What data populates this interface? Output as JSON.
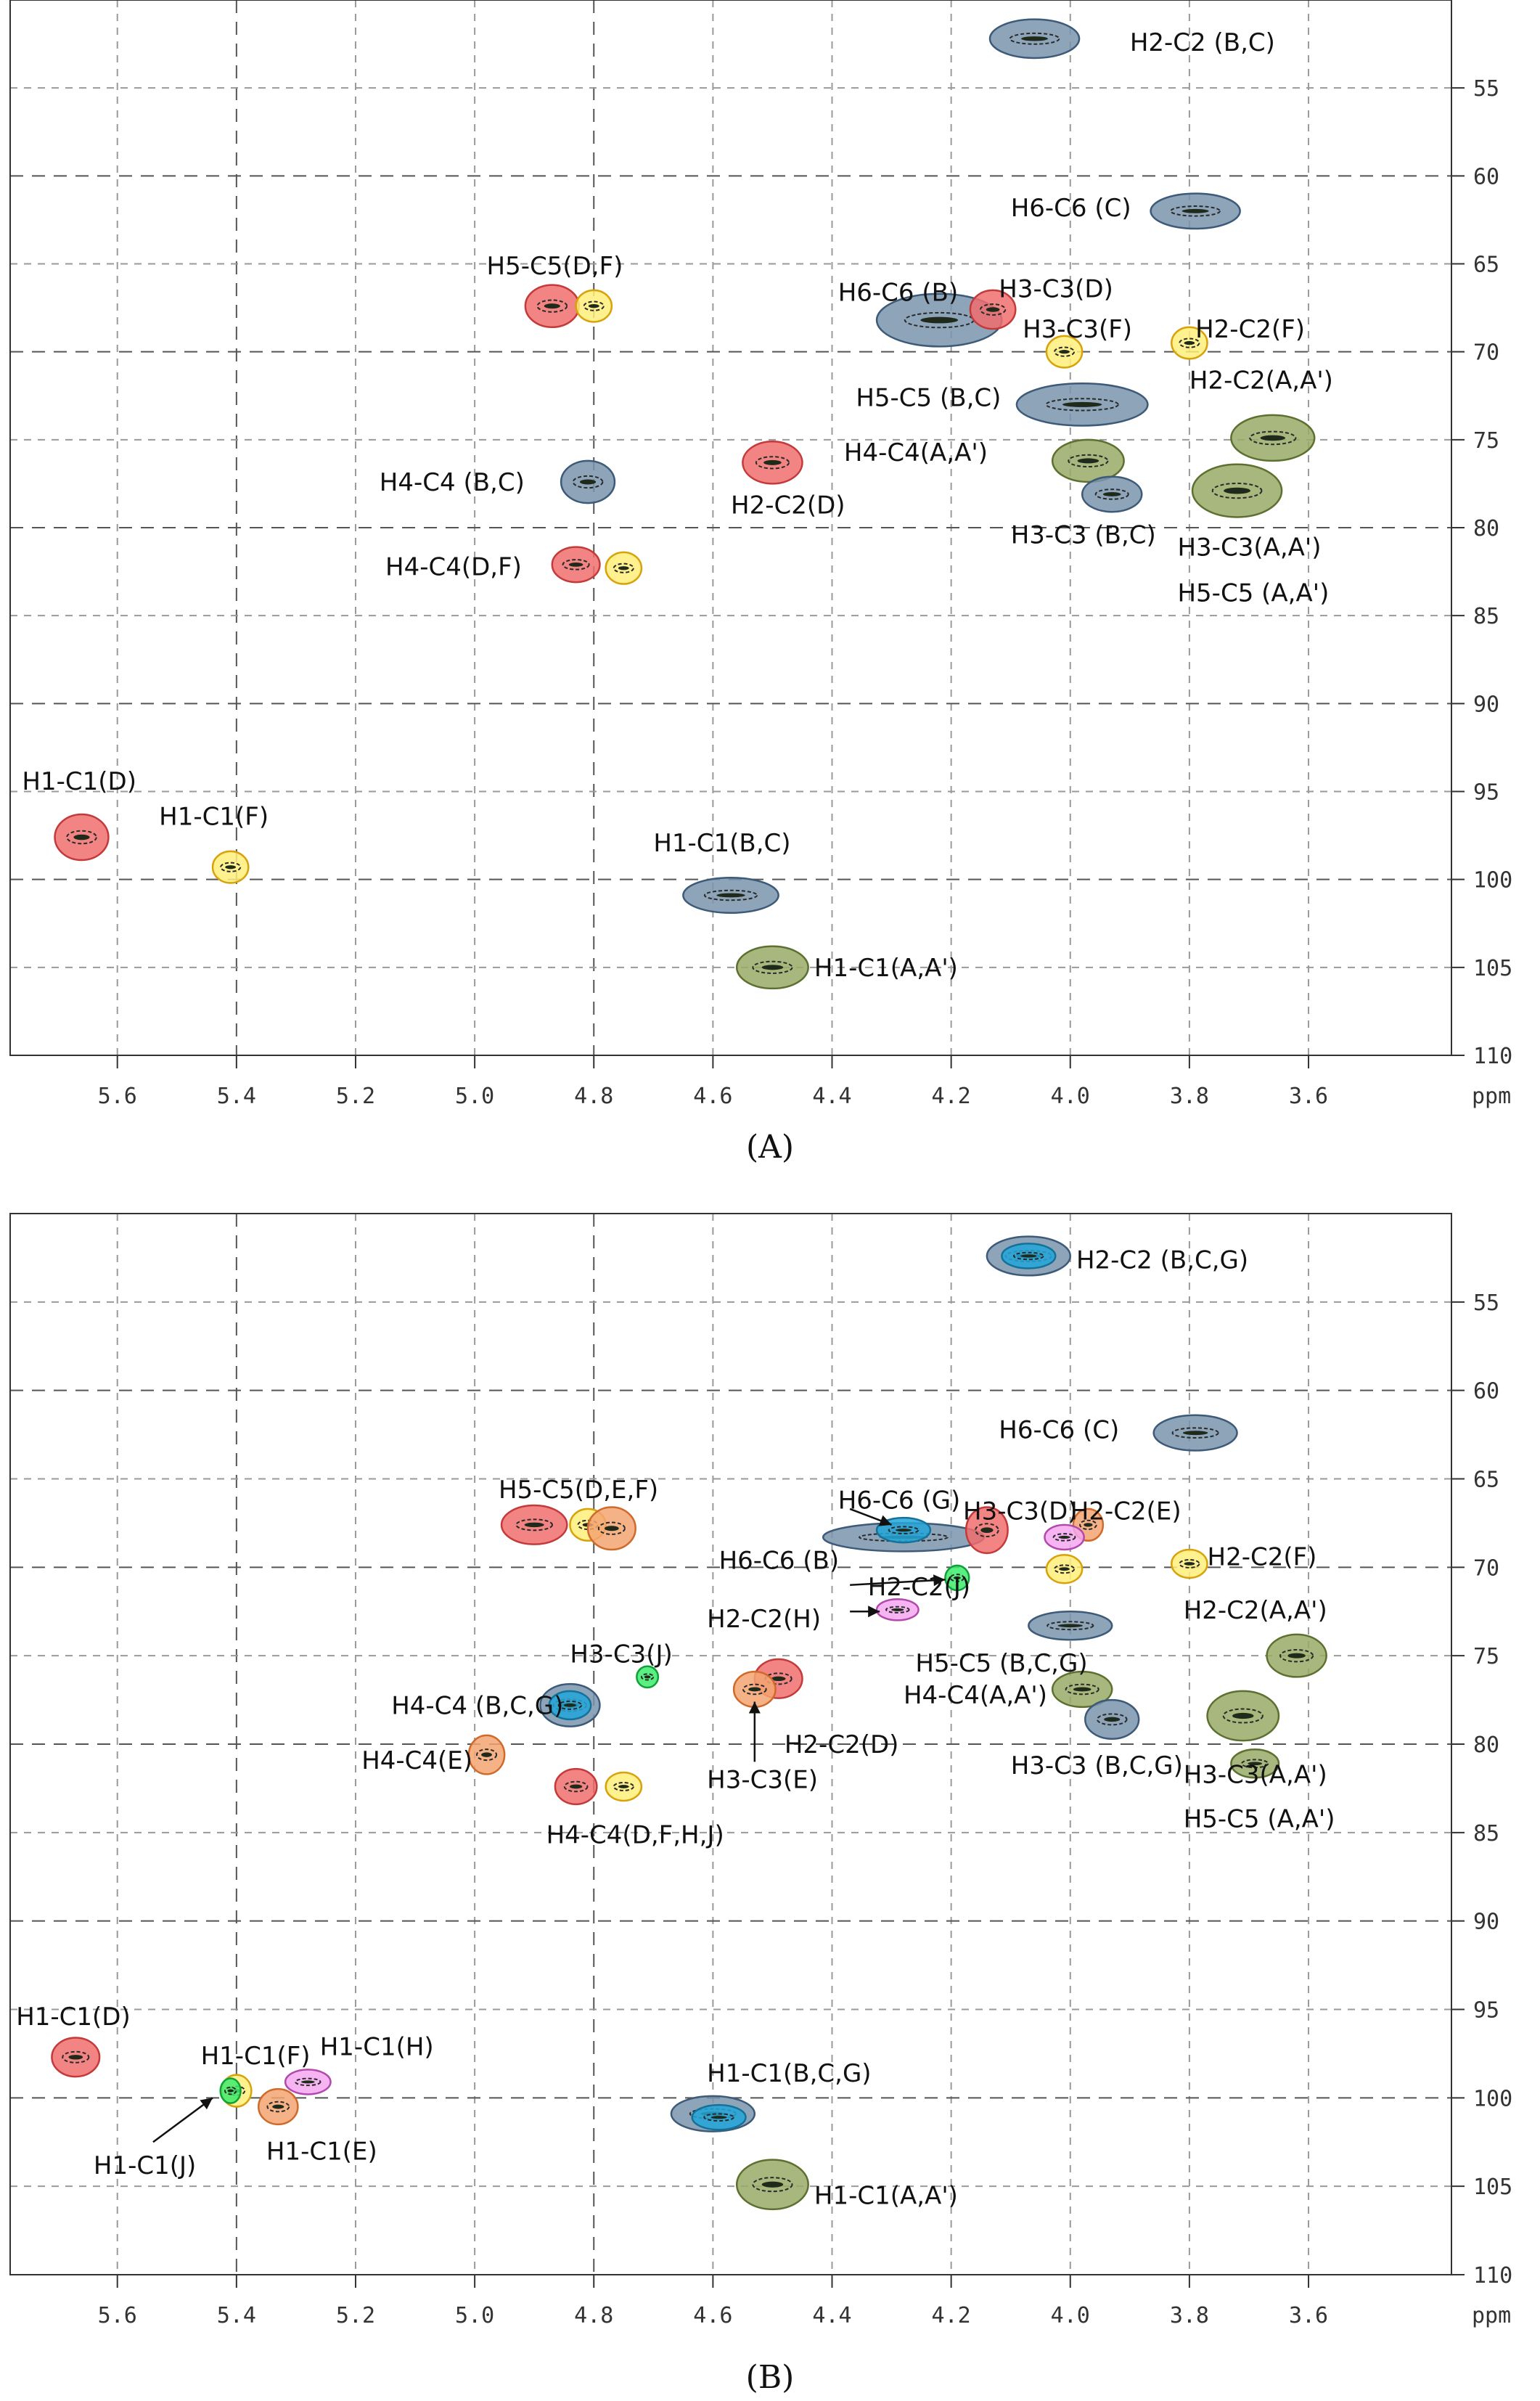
{
  "chart_data": [
    {
      "type": "scatter",
      "panel_label": "A",
      "xlabel": "ppm",
      "xlim": [
        5.78,
        3.36
      ],
      "ylim": [
        50,
        110
      ],
      "x_ticks": [
        "5.6",
        "5.4",
        "5.2",
        "5.0",
        "4.8",
        "4.6",
        "4.4",
        "4.2",
        "4.0",
        "3.8",
        "3.6"
      ],
      "y_ticks": [
        "55",
        "60",
        "65",
        "70",
        "75",
        "80",
        "85",
        "90",
        "95",
        "100",
        "105",
        "110"
      ],
      "peaks": [
        {
          "label": "H2-C2 (B,C)",
          "x": 4.06,
          "y": 52.2,
          "group": "slate",
          "rx": 0.075,
          "ry": 1.1
        },
        {
          "label": "H6-C6 (C)",
          "x": 3.79,
          "y": 62.0,
          "group": "slate",
          "rx": 0.075,
          "ry": 1.0
        },
        {
          "label": "H5-C5(D,F)",
          "x": 4.87,
          "y": 67.4,
          "group": "red",
          "rx": 0.045,
          "ry": 1.2
        },
        {
          "label": "H5-C5(D,F)",
          "x": 4.8,
          "y": 67.4,
          "group": "yellow",
          "rx": 0.03,
          "ry": 0.9
        },
        {
          "label": "H6-C6 (B)",
          "x": 4.22,
          "y": 68.2,
          "group": "slate",
          "rx": 0.105,
          "ry": 1.5
        },
        {
          "label": "H3-C3(D)",
          "x": 4.13,
          "y": 67.6,
          "group": "red",
          "rx": 0.038,
          "ry": 1.1
        },
        {
          "label": "H3-C3(F)",
          "x": 4.01,
          "y": 70.0,
          "group": "yellow",
          "rx": 0.03,
          "ry": 0.9
        },
        {
          "label": "H2-C2(F)",
          "x": 3.8,
          "y": 69.5,
          "group": "yellow",
          "rx": 0.03,
          "ry": 0.9
        },
        {
          "label": "H5-C5 (B,C)",
          "x": 3.98,
          "y": 73.0,
          "group": "slate",
          "rx": 0.11,
          "ry": 1.2
        },
        {
          "label": "H2-C2(A,A')",
          "x": 3.66,
          "y": 74.9,
          "group": "olive",
          "rx": 0.07,
          "ry": 1.3
        },
        {
          "label": "H4-C4(A,A')",
          "x": 3.97,
          "y": 76.2,
          "group": "olive",
          "rx": 0.06,
          "ry": 1.2
        },
        {
          "label": "H4-C4 (B,C)",
          "x": 4.81,
          "y": 77.4,
          "group": "slate",
          "rx": 0.045,
          "ry": 1.2
        },
        {
          "label": "H2-C2(D)",
          "x": 4.5,
          "y": 76.3,
          "group": "red",
          "rx": 0.05,
          "ry": 1.2
        },
        {
          "label": "H3-C3 (B,C)",
          "x": 3.93,
          "y": 78.1,
          "group": "slate",
          "rx": 0.05,
          "ry": 1.0
        },
        {
          "label": "H3-C3(A,A')",
          "x": 3.72,
          "y": 77.9,
          "group": "olive",
          "rx": 0.075,
          "ry": 1.5
        },
        {
          "label": "H4-C4(D,F)",
          "x": 4.83,
          "y": 82.1,
          "group": "red",
          "rx": 0.04,
          "ry": 1.0
        },
        {
          "label": "H4-C4(D,F)",
          "x": 4.75,
          "y": 82.3,
          "group": "yellow",
          "rx": 0.03,
          "ry": 0.9
        },
        {
          "label": "H1-C1(D)",
          "x": 5.66,
          "y": 97.6,
          "group": "red",
          "rx": 0.045,
          "ry": 1.3
        },
        {
          "label": "H1-C1(F)",
          "x": 5.41,
          "y": 99.3,
          "group": "yellow",
          "rx": 0.03,
          "ry": 0.9
        },
        {
          "label": "H1-C1(B,C)",
          "x": 4.57,
          "y": 100.9,
          "group": "slate",
          "rx": 0.08,
          "ry": 1.0
        },
        {
          "label": "H1-C1(A,A')",
          "x": 4.5,
          "y": 105.0,
          "group": "olive",
          "rx": 0.06,
          "ry": 1.2
        }
      ],
      "labels": [
        {
          "text": "H2-C2 (B,C)",
          "x": 3.9,
          "y": 52.4
        },
        {
          "text": "H6-C6 (C)",
          "x": 4.1,
          "y": 61.8
        },
        {
          "text": "H5-C5(D,F)",
          "x": 4.98,
          "y": 65.1
        },
        {
          "text": "H6-C6 (B)",
          "x": 4.39,
          "y": 66.6
        },
        {
          "text": "H3-C3(D)",
          "x": 4.12,
          "y": 66.4
        },
        {
          "text": "H3-C3(F)",
          "x": 4.08,
          "y": 68.7
        },
        {
          "text": "H2-C2(F)",
          "x": 3.79,
          "y": 68.7
        },
        {
          "text": "H5-C5 (B,C)",
          "x": 4.36,
          "y": 72.6
        },
        {
          "text": "H2-C2(A,A')",
          "x": 3.8,
          "y": 71.6
        },
        {
          "text": "H4-C4(A,A')",
          "x": 4.38,
          "y": 75.7
        },
        {
          "text": "H4-C4 (B,C)",
          "x": 5.16,
          "y": 77.4
        },
        {
          "text": "H2-C2(D)",
          "x": 4.57,
          "y": 78.7
        },
        {
          "text": "H3-C3 (B,C)",
          "x": 4.1,
          "y": 80.4
        },
        {
          "text": "H3-C3(A,A')",
          "x": 3.82,
          "y": 81.1
        },
        {
          "text": "H5-C5 (A,A')",
          "x": 3.82,
          "y": 83.7
        },
        {
          "text": "H4-C4(D,F)",
          "x": 5.15,
          "y": 82.2
        },
        {
          "text": "H1-C1(D)",
          "x": 5.76,
          "y": 94.4
        },
        {
          "text": "H1-C1(F)",
          "x": 5.53,
          "y": 96.4
        },
        {
          "text": "H1-C1(B,C)",
          "x": 4.7,
          "y": 97.9
        },
        {
          "text": "H1-C1(A,A')",
          "x": 4.43,
          "y": 105.0
        }
      ],
      "arrows": []
    },
    {
      "type": "scatter",
      "panel_label": "B",
      "xlabel": "ppm",
      "xlim": [
        5.78,
        3.36
      ],
      "ylim": [
        50,
        110
      ],
      "x_ticks": [
        "5.6",
        "5.4",
        "5.2",
        "5.0",
        "4.8",
        "4.6",
        "4.4",
        "4.2",
        "4.0",
        "3.8",
        "3.6"
      ],
      "y_ticks": [
        "55",
        "60",
        "65",
        "70",
        "75",
        "80",
        "85",
        "90",
        "95",
        "100",
        "105",
        "110"
      ],
      "peaks": [
        {
          "label": "H2-C2 (B,C,G)",
          "x": 4.07,
          "y": 52.4,
          "group": "slate",
          "rx": 0.07,
          "ry": 1.1
        },
        {
          "label": "H2-C2 (B,C,G)",
          "x": 4.07,
          "y": 52.4,
          "group": "blue",
          "rx": 0.045,
          "ry": 0.7
        },
        {
          "label": "H6-C6 (C)",
          "x": 3.79,
          "y": 62.4,
          "group": "slate",
          "rx": 0.07,
          "ry": 1.0
        },
        {
          "label": "H5-C5(D,E,F)",
          "x": 4.9,
          "y": 67.6,
          "group": "red",
          "rx": 0.055,
          "ry": 1.1
        },
        {
          "label": "H5-C5(D,E,F)",
          "x": 4.81,
          "y": 67.6,
          "group": "yellow",
          "rx": 0.03,
          "ry": 0.9
        },
        {
          "label": "H5-C5(D,E,F)",
          "x": 4.77,
          "y": 67.8,
          "group": "orange",
          "rx": 0.04,
          "ry": 1.2
        },
        {
          "label": "H6-C6 (B)",
          "x": 4.28,
          "y": 68.3,
          "group": "slate",
          "rx": 0.135,
          "ry": 0.8
        },
        {
          "label": "H6-C6 (G)",
          "x": 4.28,
          "y": 67.9,
          "group": "blue",
          "rx": 0.045,
          "ry": 0.7
        },
        {
          "label": "H3-C3(D)",
          "x": 4.14,
          "y": 67.9,
          "group": "red",
          "rx": 0.035,
          "ry": 1.3
        },
        {
          "label": "H2-C2(E)",
          "x": 3.97,
          "y": 67.6,
          "group": "orange",
          "rx": 0.025,
          "ry": 0.9
        },
        {
          "label": "H2-C2(E)",
          "x": 4.01,
          "y": 68.3,
          "group": "pink",
          "rx": 0.033,
          "ry": 0.7
        },
        {
          "label": "H3-C3(D)",
          "x": 4.01,
          "y": 70.1,
          "group": "yellow",
          "rx": 0.03,
          "ry": 0.8
        },
        {
          "label": "H2-C2(F)",
          "x": 3.8,
          "y": 69.8,
          "group": "yellow",
          "rx": 0.03,
          "ry": 0.8
        },
        {
          "label": "H2-C2(J)",
          "x": 4.19,
          "y": 70.6,
          "group": "green",
          "rx": 0.02,
          "ry": 0.7
        },
        {
          "label": "H2-C2(H)",
          "x": 4.29,
          "y": 72.4,
          "group": "pink",
          "rx": 0.035,
          "ry": 0.6
        },
        {
          "label": "H5-C5 (B,C,G)",
          "x": 4.0,
          "y": 73.3,
          "group": "slate",
          "rx": 0.07,
          "ry": 0.8
        },
        {
          "label": "H2-C2(A,A')",
          "x": 3.62,
          "y": 75.0,
          "group": "olive",
          "rx": 0.05,
          "ry": 1.2
        },
        {
          "label": "H3-C3(J)",
          "x": 4.71,
          "y": 76.2,
          "group": "green",
          "rx": 0.018,
          "ry": 0.6
        },
        {
          "label": "H2-C2(D)",
          "x": 4.49,
          "y": 76.3,
          "group": "red",
          "rx": 0.04,
          "ry": 1.1
        },
        {
          "label": "H3-C3(E)",
          "x": 4.53,
          "y": 76.9,
          "group": "orange",
          "rx": 0.035,
          "ry": 1.0
        },
        {
          "label": "H4-C4(A,A')",
          "x": 3.98,
          "y": 76.9,
          "group": "olive",
          "rx": 0.05,
          "ry": 1.0
        },
        {
          "label": "H4-C4 (B,C,G)",
          "x": 4.84,
          "y": 77.8,
          "group": "slate",
          "rx": 0.05,
          "ry": 1.2
        },
        {
          "label": "H4-C4 (B,C,G)",
          "x": 4.84,
          "y": 77.8,
          "group": "blue",
          "rx": 0.035,
          "ry": 0.8
        },
        {
          "label": "H3-C3 (B,C,G)",
          "x": 3.93,
          "y": 78.6,
          "group": "slate",
          "rx": 0.045,
          "ry": 1.1
        },
        {
          "label": "H3-C3(A,A')",
          "x": 3.71,
          "y": 78.4,
          "group": "olive",
          "rx": 0.06,
          "ry": 1.4
        },
        {
          "label": "H5-C5 (A,A')",
          "x": 3.69,
          "y": 81.1,
          "group": "olive",
          "rx": 0.04,
          "ry": 0.8
        },
        {
          "label": "H4-C4(E)",
          "x": 4.98,
          "y": 80.6,
          "group": "orange",
          "rx": 0.03,
          "ry": 1.1
        },
        {
          "label": "H4-C4(D,F,H,J)",
          "x": 4.83,
          "y": 82.4,
          "group": "red",
          "rx": 0.035,
          "ry": 1.0
        },
        {
          "label": "H4-C4(D,F,H,J)",
          "x": 4.75,
          "y": 82.4,
          "group": "yellow",
          "rx": 0.03,
          "ry": 0.8
        },
        {
          "label": "H1-C1(D)",
          "x": 5.67,
          "y": 97.7,
          "group": "red",
          "rx": 0.04,
          "ry": 1.1
        },
        {
          "label": "H1-C1(F)",
          "x": 5.4,
          "y": 99.6,
          "group": "yellow",
          "rx": 0.025,
          "ry": 0.9
        },
        {
          "label": "H1-C1(J)",
          "x": 5.41,
          "y": 99.6,
          "group": "green",
          "rx": 0.017,
          "ry": 0.7
        },
        {
          "label": "H1-C1(H)",
          "x": 5.28,
          "y": 99.1,
          "group": "pink",
          "rx": 0.038,
          "ry": 0.7
        },
        {
          "label": "H1-C1(E)",
          "x": 5.33,
          "y": 100.5,
          "group": "orange",
          "rx": 0.033,
          "ry": 1.0
        },
        {
          "label": "H1-C1(B,C,G)",
          "x": 4.6,
          "y": 100.9,
          "group": "slate",
          "rx": 0.07,
          "ry": 1.0
        },
        {
          "label": "H1-C1(B,C,G)",
          "x": 4.59,
          "y": 101.1,
          "group": "blue",
          "rx": 0.045,
          "ry": 0.7
        },
        {
          "label": "H1-C1(A,A')",
          "x": 4.5,
          "y": 104.9,
          "group": "olive",
          "rx": 0.06,
          "ry": 1.4
        }
      ],
      "labels": [
        {
          "text": "H2-C2 (B,C,G)",
          "x": 3.99,
          "y": 52.6
        },
        {
          "text": "H6-C6 (C)",
          "x": 4.12,
          "y": 62.2
        },
        {
          "text": "H5-C5(D,E,F)",
          "x": 4.96,
          "y": 65.6
        },
        {
          "text": "H6-C6 (G)",
          "x": 4.39,
          "y": 66.2
        },
        {
          "text": "H3-C3(D)",
          "x": 4.18,
          "y": 66.8
        },
        {
          "text": "H2-C2(E)",
          "x": 4.0,
          "y": 66.8
        },
        {
          "text": "H6-C6 (B)",
          "x": 4.59,
          "y": 69.6
        },
        {
          "text": "H2-C2(F)",
          "x": 3.77,
          "y": 69.4
        },
        {
          "text": "H2-C2(J)",
          "x": 4.34,
          "y": 71.1
        },
        {
          "text": "H2-C2(H)",
          "x": 4.61,
          "y": 72.9
        },
        {
          "text": "H2-C2(A,A')",
          "x": 3.81,
          "y": 72.4
        },
        {
          "text": "H5-C5 (B,C,G)",
          "x": 4.26,
          "y": 75.4
        },
        {
          "text": "H3-C3(J)",
          "x": 4.84,
          "y": 74.9
        },
        {
          "text": "H4-C4(A,A')",
          "x": 4.28,
          "y": 77.2
        },
        {
          "text": "H4-C4 (B,C,G)",
          "x": 5.14,
          "y": 77.8
        },
        {
          "text": "H2-C2(D)",
          "x": 4.48,
          "y": 80.0
        },
        {
          "text": "H3-C3 (B,C,G)",
          "x": 4.1,
          "y": 81.2
        },
        {
          "text": "H3-C3(A,A')",
          "x": 3.81,
          "y": 81.7
        },
        {
          "text": "H4-C4(E)",
          "x": 5.19,
          "y": 80.9
        },
        {
          "text": "H3-C3(E)",
          "x": 4.61,
          "y": 82.0
        },
        {
          "text": "H5-C5 (A,A')",
          "x": 3.81,
          "y": 84.2
        },
        {
          "text": "H4-C4(D,F,H,J)",
          "x": 4.88,
          "y": 85.1
        },
        {
          "text": "H1-C1(D)",
          "x": 5.77,
          "y": 95.4
        },
        {
          "text": "H1-C1(F)",
          "x": 5.46,
          "y": 97.6
        },
        {
          "text": "H1-C1(H)",
          "x": 5.26,
          "y": 97.1
        },
        {
          "text": "H1-C1(B,C,G)",
          "x": 4.61,
          "y": 98.6
        },
        {
          "text": "H1-C1(E)",
          "x": 5.35,
          "y": 103.0
        },
        {
          "text": "H1-C1(J)",
          "x": 5.64,
          "y": 103.8
        },
        {
          "text": "H1-C1(A,A')",
          "x": 4.43,
          "y": 105.5
        }
      ],
      "arrows": [
        {
          "from": [
            4.37,
            66.7
          ],
          "to": [
            4.3,
            67.6
          ]
        },
        {
          "from": [
            4.37,
            71.0
          ],
          "to": [
            4.21,
            70.7
          ]
        },
        {
          "from": [
            4.37,
            72.5
          ],
          "to": [
            4.32,
            72.5
          ]
        },
        {
          "from": [
            4.53,
            81.0
          ],
          "to": [
            4.53,
            77.6
          ]
        },
        {
          "from": [
            5.54,
            102.5
          ],
          "to": [
            5.44,
            100.0
          ]
        }
      ]
    }
  ],
  "legend_colors": {
    "slate": {
      "fill": "#7a94ad",
      "stroke": "#3d5a78"
    },
    "blue": {
      "fill": "#23a6d8",
      "stroke": "#14729a"
    },
    "red": {
      "fill": "#f06f6f",
      "stroke": "#c43a3a"
    },
    "yellow": {
      "fill": "#ffef7a",
      "stroke": "#d8a20a"
    },
    "orange": {
      "fill": "#f5a472",
      "stroke": "#d06a2a"
    },
    "olive": {
      "fill": "#98aa66",
      "stroke": "#5e7030"
    },
    "pink": {
      "fill": "#f5a8f0",
      "stroke": "#b24aac"
    },
    "green": {
      "fill": "#3dec6b",
      "stroke": "#10a03a"
    }
  },
  "captions": {
    "panel_a": "(A)",
    "panel_b": "(B)",
    "axis_unit": "ppm"
  }
}
